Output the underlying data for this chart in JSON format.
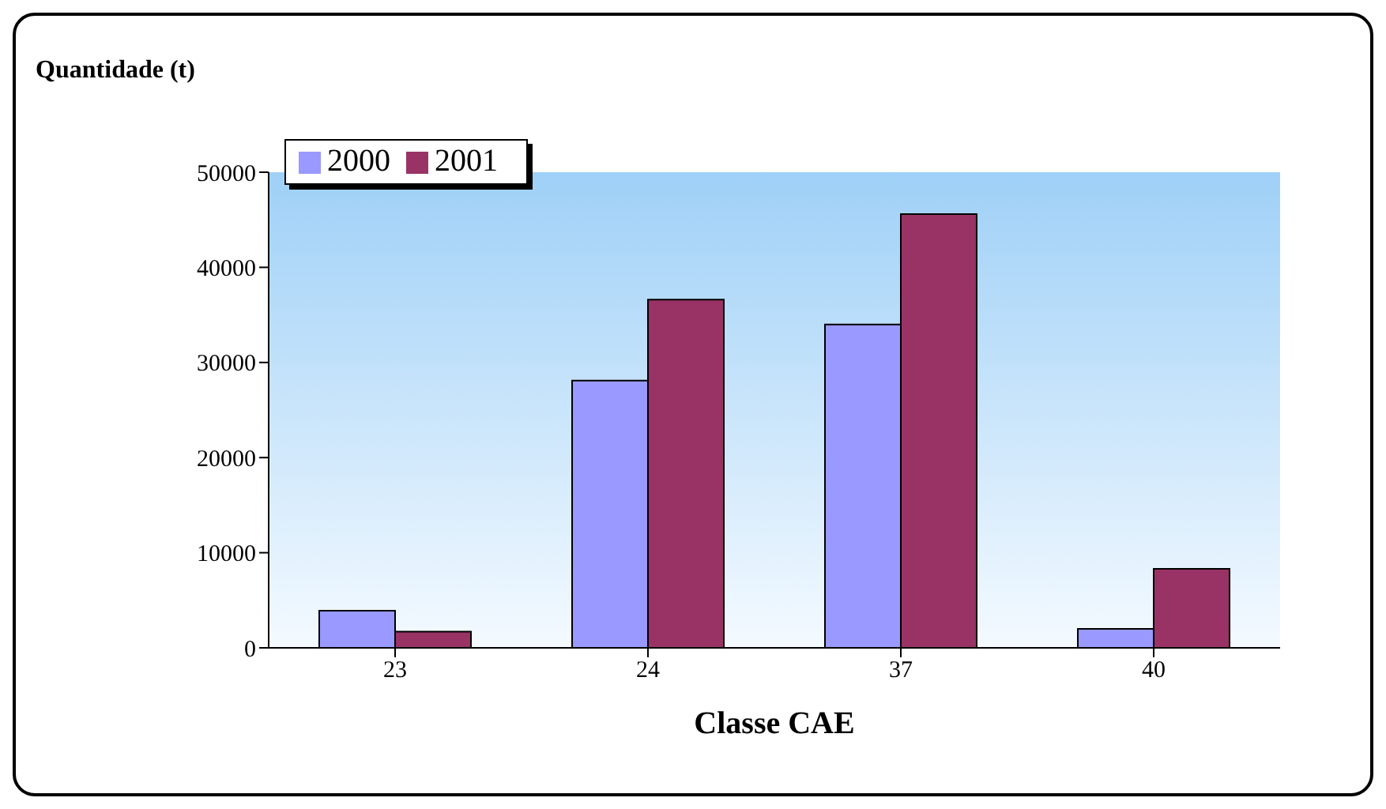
{
  "chart_data": {
    "type": "bar",
    "xlabel": "Classe CAE",
    "ylabel": "Quantidade (t)",
    "categories": [
      "23",
      "24",
      "37",
      "40"
    ],
    "series": [
      {
        "name": "2000",
        "color": "#9999ff",
        "values": [
          3900,
          28100,
          34000,
          2000
        ]
      },
      {
        "name": "2001",
        "color": "#993366",
        "values": [
          1700,
          36600,
          45600,
          8300
        ]
      }
    ],
    "ylim": [
      0,
      50000
    ],
    "yticks": [
      0,
      10000,
      20000,
      30000,
      40000,
      50000
    ],
    "legend": "top left",
    "grid": false
  }
}
